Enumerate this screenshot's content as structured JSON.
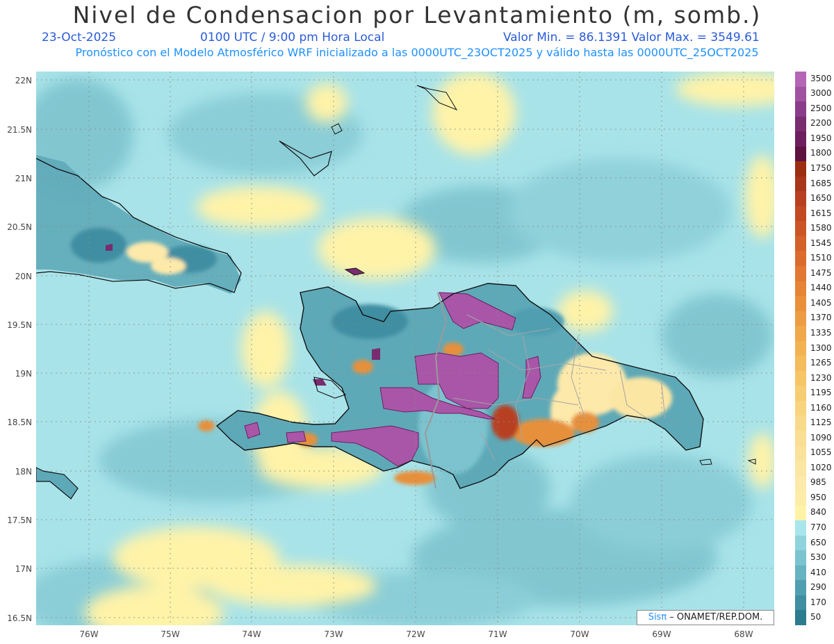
{
  "header": {
    "title": "Nivel de Condensacion por Levantamiento (m, somb.)",
    "date": "23-Oct-2025",
    "time": "0100 UTC / 9:00 pm Hora Local",
    "minmax": "Valor Min. = 86.1391   Valor Max. = 3549.61",
    "model_note": "Pronóstico con el Modelo Atmosférico WRF inicializado a las 0000UTC_23OCT2025 y válido hasta las  0000UTC_25OCT2025"
  },
  "axes": {
    "lat_labels": [
      "22N",
      "21.5N",
      "21N",
      "20.5N",
      "20N",
      "19.5N",
      "19N",
      "18.5N",
      "18N",
      "17.5N",
      "17N",
      "16.5N"
    ],
    "lon_labels": [
      "76W",
      "75W",
      "74W",
      "73W",
      "72W",
      "71W",
      "70W",
      "69W",
      "68W"
    ]
  },
  "colorbar": {
    "labels": [
      "3500",
      "3000",
      "2500",
      "2200",
      "1950",
      "1800",
      "1750",
      "1685",
      "1650",
      "1615",
      "1580",
      "1545",
      "1510",
      "1475",
      "1440",
      "1405",
      "1370",
      "1335",
      "1300",
      "1265",
      "1230",
      "1195",
      "1160",
      "1125",
      "1090",
      "1055",
      "1020",
      "985",
      "950",
      "840",
      "770",
      "650",
      "530",
      "410",
      "290",
      "170",
      "50"
    ],
    "colors": [
      "#b565b5",
      "#a052a0",
      "#8a3c8a",
      "#7a2c70",
      "#6e1e5e",
      "#5e1240",
      "#9c2d10",
      "#a8361a",
      "#b84020",
      "#c24a22",
      "#cc5526",
      "#d4602a",
      "#dc6c2e",
      "#e27832",
      "#e68436",
      "#ea903a",
      "#ee9c42",
      "#f0a84a",
      "#f2b252",
      "#f4bc5c",
      "#f6c566",
      "#f7cd72",
      "#f8d47e",
      "#f9da8a",
      "#fade94",
      "#fbe29c",
      "#fce6a4",
      "#fde9aa",
      "#fdeda8",
      "#fff3a8",
      "#a8e6ec",
      "#8fd3dc",
      "#7bc3cf",
      "#66b3c2",
      "#4f9fb1",
      "#3f8ea1",
      "#2c7b8e"
    ]
  },
  "credit": {
    "sis": "Sisπ",
    "rest": " – ONAMET/REP.DOM."
  },
  "colors": {
    "ocean": "#a8e3e9",
    "low": "#7cc2cc",
    "mid": "#fff3a8",
    "high": "#a956a9",
    "orange": "#e7903b"
  }
}
